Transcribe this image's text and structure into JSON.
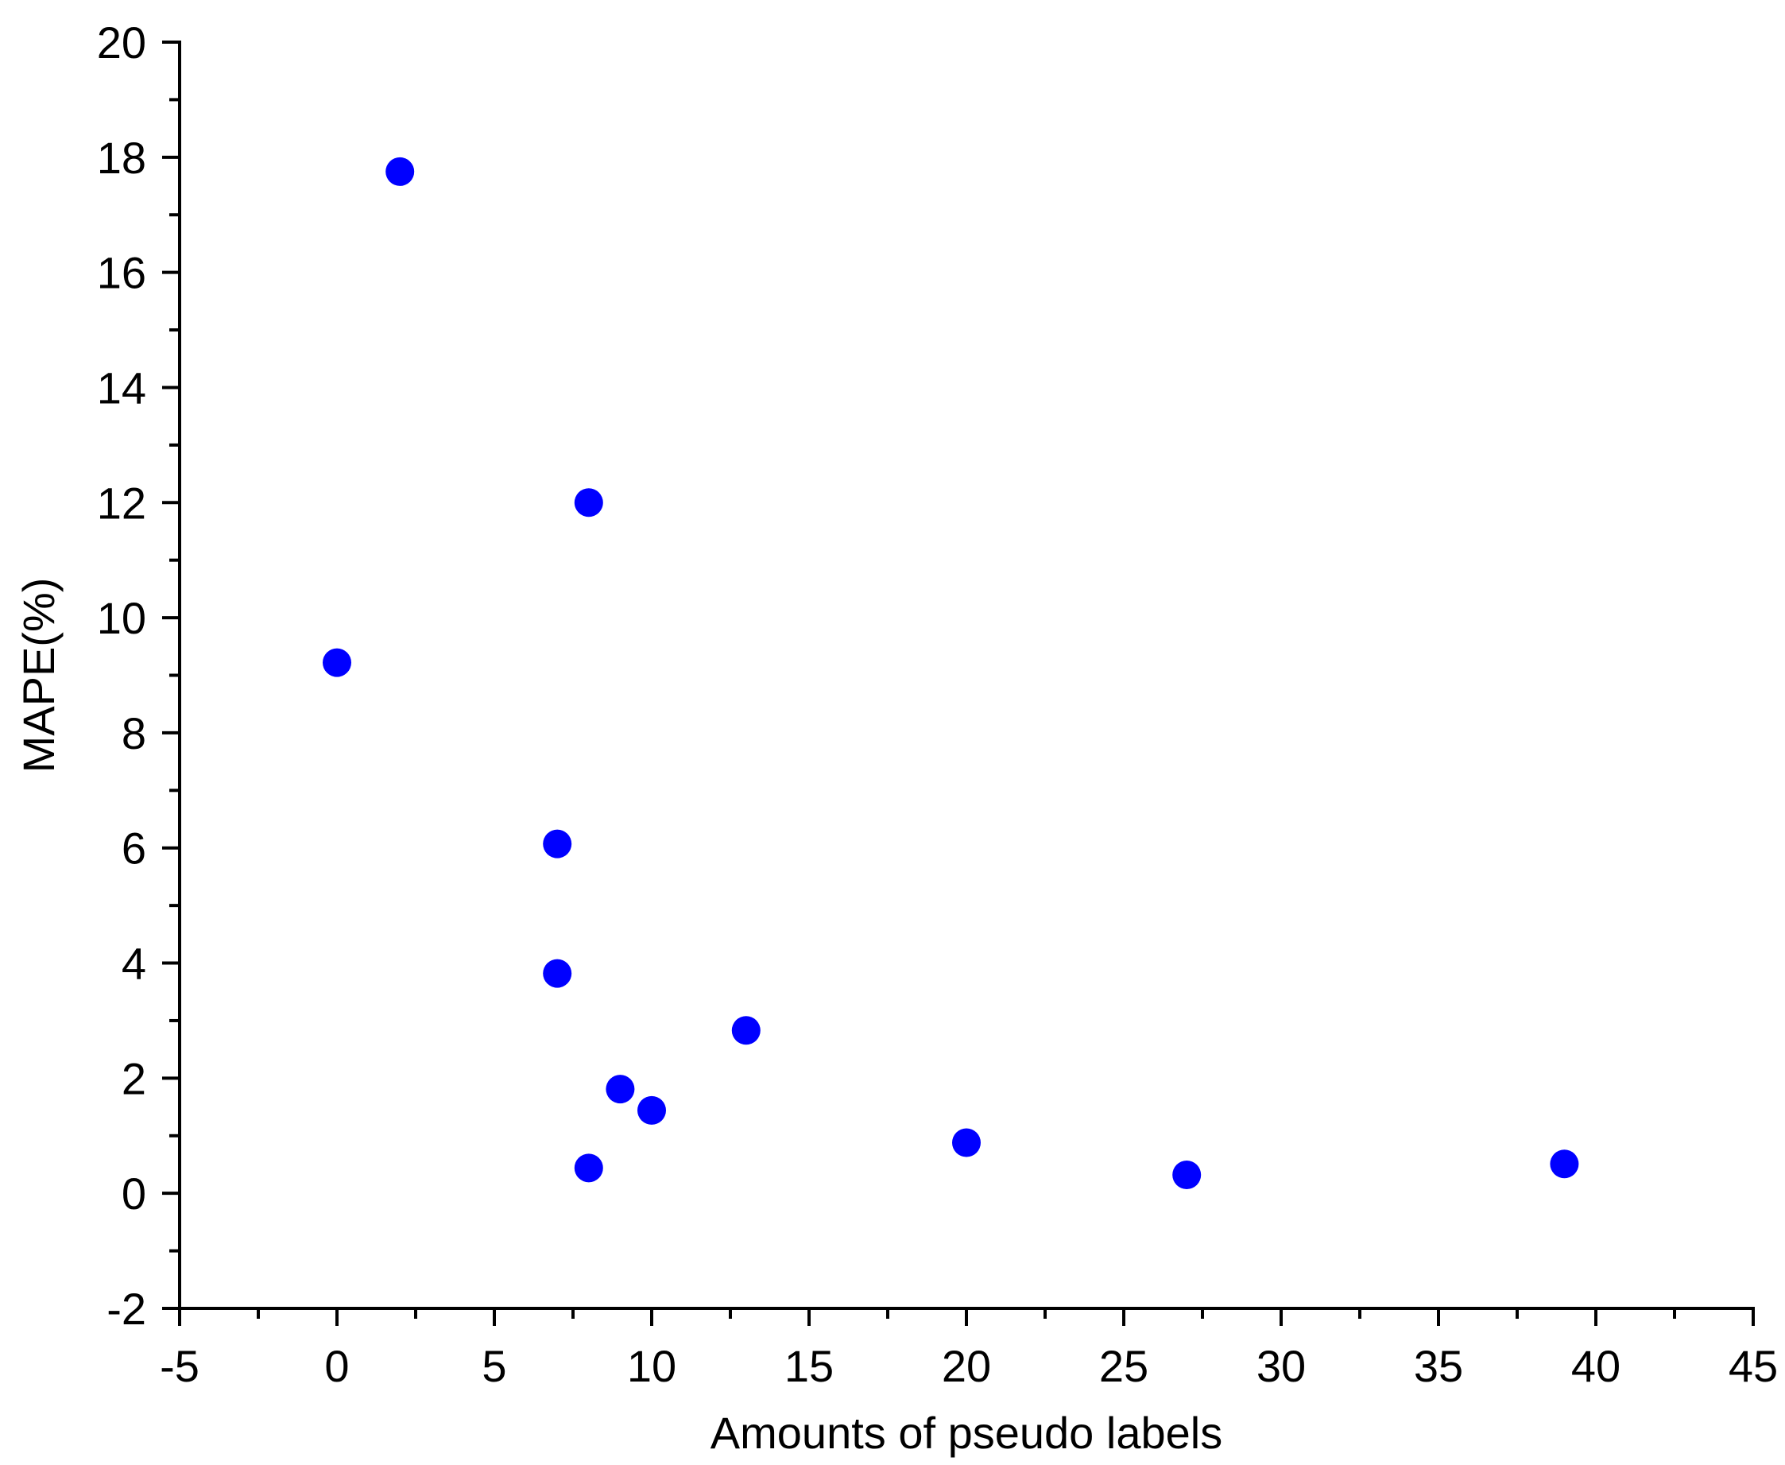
{
  "chart_data": {
    "type": "scatter",
    "title": "",
    "xlabel": "Amounts of pseudo labels",
    "ylabel": "MAPE(%)",
    "xlim": [
      -5,
      45
    ],
    "ylim": [
      -2,
      20
    ],
    "x_ticks": [
      -5,
      0,
      5,
      10,
      15,
      20,
      25,
      30,
      35,
      40,
      45
    ],
    "y_ticks": [
      -2,
      0,
      2,
      4,
      6,
      8,
      10,
      12,
      14,
      16,
      18,
      20
    ],
    "x_minor_step": 2.5,
    "y_minor_step": 1,
    "grid": false,
    "marker_color": "#0000ff",
    "points": [
      {
        "x": 0,
        "y": 9.22
      },
      {
        "x": 2,
        "y": 17.75
      },
      {
        "x": 7,
        "y": 6.07
      },
      {
        "x": 7,
        "y": 3.82
      },
      {
        "x": 8,
        "y": 12.0
      },
      {
        "x": 8,
        "y": 0.44
      },
      {
        "x": 9,
        "y": 1.81
      },
      {
        "x": 10,
        "y": 1.44
      },
      {
        "x": 13,
        "y": 2.83
      },
      {
        "x": 20,
        "y": 0.88
      },
      {
        "x": 27,
        "y": 0.32
      },
      {
        "x": 39,
        "y": 0.51
      }
    ]
  }
}
